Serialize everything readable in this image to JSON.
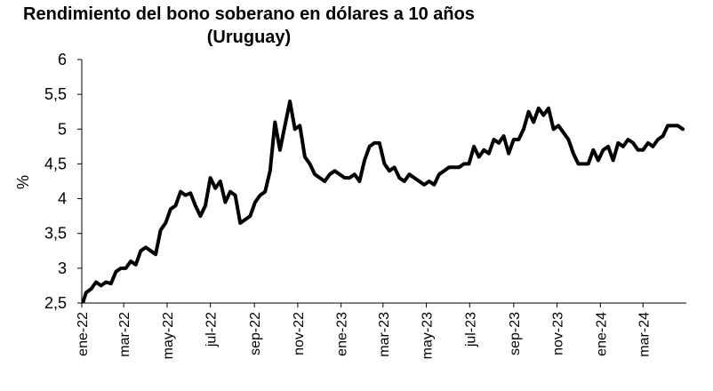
{
  "chart_data": {
    "type": "line",
    "title": "Rendimiento del bono soberano en dólares a 10 años",
    "subtitle": "(Uruguay)",
    "ylabel": "%",
    "xlabel": "",
    "ylim": [
      2.5,
      6
    ],
    "yticks": [
      "2,5",
      "3",
      "3,5",
      "4",
      "4,5",
      "5",
      "5,5",
      "6"
    ],
    "xticks": [
      "ene-22",
      "mar-22",
      "may-22",
      "jul-22",
      "sep-22",
      "nov-22",
      "ene-23",
      "mar-23",
      "may-23",
      "jul-23",
      "sep-23",
      "nov-23",
      "ene-24",
      "mar-24"
    ],
    "grid": false,
    "legend": "none",
    "line_color": "#000000",
    "series": [
      {
        "values": [
          [
            "2022-01-03",
            2.52
          ],
          [
            "2022-01-07",
            2.65
          ],
          [
            "2022-01-14",
            2.7
          ],
          [
            "2022-01-21",
            2.8
          ],
          [
            "2022-01-28",
            2.75
          ],
          [
            "2022-02-04",
            2.8
          ],
          [
            "2022-02-11",
            2.78
          ],
          [
            "2022-02-18",
            2.95
          ],
          [
            "2022-02-25",
            3.0
          ],
          [
            "2022-03-04",
            3.0
          ],
          [
            "2022-03-11",
            3.1
          ],
          [
            "2022-03-18",
            3.05
          ],
          [
            "2022-03-25",
            3.25
          ],
          [
            "2022-04-01",
            3.3
          ],
          [
            "2022-04-08",
            3.25
          ],
          [
            "2022-04-15",
            3.2
          ],
          [
            "2022-04-22",
            3.55
          ],
          [
            "2022-04-29",
            3.65
          ],
          [
            "2022-05-06",
            3.85
          ],
          [
            "2022-05-13",
            3.9
          ],
          [
            "2022-05-20",
            4.1
          ],
          [
            "2022-05-27",
            4.05
          ],
          [
            "2022-06-03",
            4.08
          ],
          [
            "2022-06-10",
            3.9
          ],
          [
            "2022-06-17",
            3.75
          ],
          [
            "2022-06-24",
            3.9
          ],
          [
            "2022-07-01",
            4.3
          ],
          [
            "2022-07-08",
            4.15
          ],
          [
            "2022-07-15",
            4.25
          ],
          [
            "2022-07-22",
            3.95
          ],
          [
            "2022-07-29",
            4.1
          ],
          [
            "2022-08-05",
            4.05
          ],
          [
            "2022-08-12",
            3.65
          ],
          [
            "2022-08-19",
            3.7
          ],
          [
            "2022-08-26",
            3.75
          ],
          [
            "2022-09-02",
            3.95
          ],
          [
            "2022-09-09",
            4.05
          ],
          [
            "2022-09-16",
            4.1
          ],
          [
            "2022-09-23",
            4.4
          ],
          [
            "2022-09-30",
            5.1
          ],
          [
            "2022-10-07",
            4.7
          ],
          [
            "2022-10-14",
            5.05
          ],
          [
            "2022-10-21",
            5.4
          ],
          [
            "2022-10-28",
            5.0
          ],
          [
            "2022-11-04",
            5.05
          ],
          [
            "2022-11-11",
            4.6
          ],
          [
            "2022-11-18",
            4.5
          ],
          [
            "2022-11-25",
            4.35
          ],
          [
            "2022-12-02",
            4.3
          ],
          [
            "2022-12-09",
            4.25
          ],
          [
            "2022-12-16",
            4.35
          ],
          [
            "2022-12-23",
            4.4
          ],
          [
            "2022-12-30",
            4.35
          ],
          [
            "2023-01-06",
            4.3
          ],
          [
            "2023-01-13",
            4.3
          ],
          [
            "2023-01-20",
            4.35
          ],
          [
            "2023-01-27",
            4.25
          ],
          [
            "2023-02-03",
            4.55
          ],
          [
            "2023-02-10",
            4.75
          ],
          [
            "2023-02-17",
            4.8
          ],
          [
            "2023-02-24",
            4.8
          ],
          [
            "2023-03-03",
            4.5
          ],
          [
            "2023-03-10",
            4.4
          ],
          [
            "2023-03-17",
            4.45
          ],
          [
            "2023-03-24",
            4.3
          ],
          [
            "2023-03-31",
            4.25
          ],
          [
            "2023-04-07",
            4.35
          ],
          [
            "2023-04-14",
            4.3
          ],
          [
            "2023-04-21",
            4.25
          ],
          [
            "2023-04-28",
            4.2
          ],
          [
            "2023-05-05",
            4.25
          ],
          [
            "2023-05-12",
            4.2
          ],
          [
            "2023-05-19",
            4.35
          ],
          [
            "2023-05-26",
            4.4
          ],
          [
            "2023-06-02",
            4.45
          ],
          [
            "2023-06-09",
            4.45
          ],
          [
            "2023-06-16",
            4.45
          ],
          [
            "2023-06-23",
            4.5
          ],
          [
            "2023-06-30",
            4.5
          ],
          [
            "2023-07-07",
            4.75
          ],
          [
            "2023-07-14",
            4.6
          ],
          [
            "2023-07-21",
            4.7
          ],
          [
            "2023-07-28",
            4.65
          ],
          [
            "2023-08-04",
            4.85
          ],
          [
            "2023-08-11",
            4.8
          ],
          [
            "2023-08-18",
            4.9
          ],
          [
            "2023-08-25",
            4.65
          ],
          [
            "2023-09-01",
            4.85
          ],
          [
            "2023-09-08",
            4.85
          ],
          [
            "2023-09-15",
            5.0
          ],
          [
            "2023-09-22",
            5.25
          ],
          [
            "2023-09-29",
            5.1
          ],
          [
            "2023-10-06",
            5.3
          ],
          [
            "2023-10-13",
            5.2
          ],
          [
            "2023-10-20",
            5.3
          ],
          [
            "2023-10-27",
            5.0
          ],
          [
            "2023-11-03",
            5.05
          ],
          [
            "2023-11-10",
            4.95
          ],
          [
            "2023-11-17",
            4.85
          ],
          [
            "2023-11-24",
            4.65
          ],
          [
            "2023-12-01",
            4.5
          ],
          [
            "2023-12-08",
            4.5
          ],
          [
            "2023-12-15",
            4.5
          ],
          [
            "2023-12-22",
            4.7
          ],
          [
            "2023-12-29",
            4.55
          ],
          [
            "2024-01-05",
            4.7
          ],
          [
            "2024-01-12",
            4.75
          ],
          [
            "2024-01-19",
            4.55
          ],
          [
            "2024-01-26",
            4.8
          ],
          [
            "2024-02-02",
            4.75
          ],
          [
            "2024-02-09",
            4.85
          ],
          [
            "2024-02-16",
            4.8
          ],
          [
            "2024-02-23",
            4.7
          ],
          [
            "2024-03-01",
            4.7
          ],
          [
            "2024-03-08",
            4.8
          ],
          [
            "2024-03-15",
            4.75
          ],
          [
            "2024-03-22",
            4.85
          ],
          [
            "2024-03-29",
            4.9
          ],
          [
            "2024-04-05",
            5.05
          ],
          [
            "2024-04-12",
            5.05
          ],
          [
            "2024-04-19",
            5.05
          ],
          [
            "2024-04-26",
            5.0
          ]
        ]
      }
    ]
  }
}
